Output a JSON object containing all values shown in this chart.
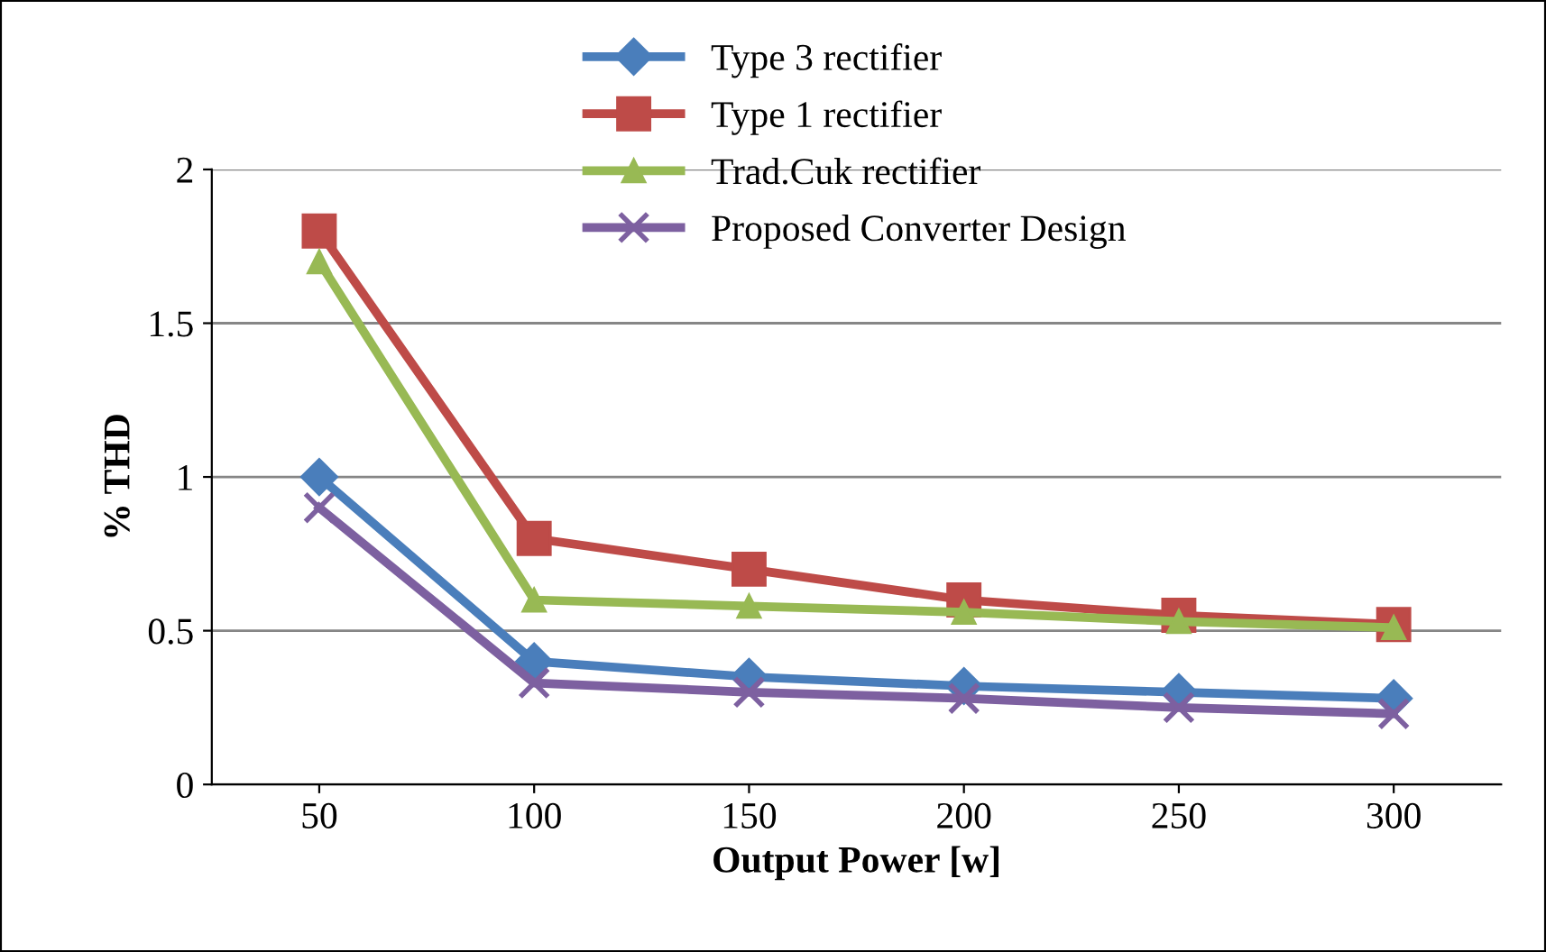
{
  "chart_data": {
    "type": "line",
    "xlabel": "Output Power [w]",
    "ylabel": "% THD",
    "categories": [
      "50",
      "100",
      "150",
      "200",
      "250",
      "300"
    ],
    "series": [
      {
        "name": "Type 3 rectifier",
        "color": "#4a7ebb",
        "marker": "diamond",
        "values": [
          1.0,
          0.4,
          0.35,
          0.32,
          0.3,
          0.28
        ]
      },
      {
        "name": "Type 1 rectifier",
        "color": "#be4b48",
        "marker": "square",
        "values": [
          1.8,
          0.8,
          0.7,
          0.6,
          0.55,
          0.52
        ]
      },
      {
        "name": "Trad.Cuk rectifier",
        "color": "#98b954",
        "marker": "triangle",
        "values": [
          1.7,
          0.6,
          0.58,
          0.56,
          0.53,
          0.51
        ]
      },
      {
        "name": "Proposed Converter Design",
        "color": "#7d60a0",
        "marker": "cross",
        "values": [
          0.9,
          0.33,
          0.3,
          0.28,
          0.25,
          0.23
        ]
      }
    ],
    "ylim": [
      0,
      2
    ],
    "yticks": [
      0,
      0.5,
      1,
      1.5,
      2
    ],
    "grid": "y",
    "legend": "top",
    "line_style": "solid"
  }
}
